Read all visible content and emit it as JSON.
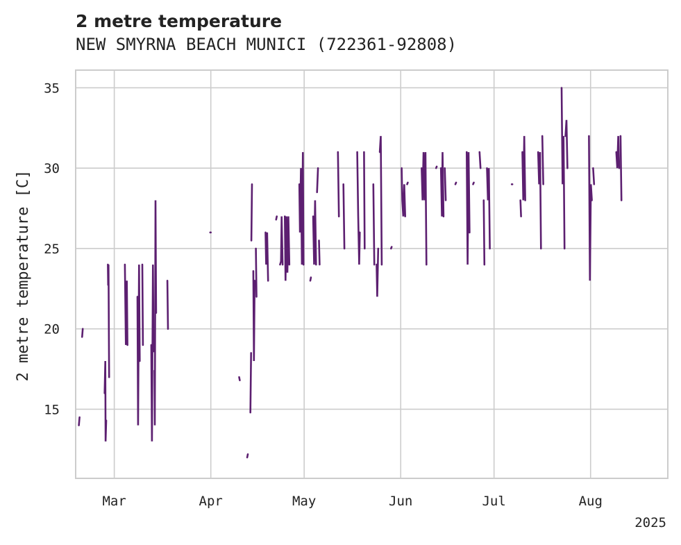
{
  "chart_data": {
    "type": "line",
    "title": "2 metre temperature",
    "subtitle": "NEW SMYRNA BEACH MUNICI (722361-92808)",
    "xlabel": "",
    "ylabel": "2 metre temperature [C]",
    "x_tick_labels": [
      "Mar",
      "Apr",
      "May",
      "Jun",
      "Jul",
      "Aug"
    ],
    "x_tick_days": [
      28,
      58,
      87,
      117,
      146,
      176
    ],
    "x_year_label": "2025",
    "xlim_days": [
      16,
      200
    ],
    "y_ticks": [
      15,
      20,
      25,
      30,
      35
    ],
    "ylim": [
      10.7,
      36.1
    ],
    "grid": true,
    "line_color": "#5c1f70",
    "series": [
      {
        "name": "2 metre temperature",
        "segments": [
          [
            [
              17,
              14.0
            ],
            [
              17.2,
              14.5
            ]
          ],
          [
            [
              18,
              19.5
            ],
            [
              18.2,
              20.0
            ]
          ],
          [
            [
              25,
              16.0
            ],
            [
              25.2,
              18.0
            ],
            [
              25.3,
              13.0
            ],
            [
              25.5,
              14.3
            ]
          ],
          [
            [
              26,
              24.0
            ],
            [
              26.1,
              22.7
            ],
            [
              26.2,
              24.0
            ],
            [
              26.4,
              17.0
            ]
          ],
          [
            [
              31.3,
              24.0
            ],
            [
              31.6,
              19.0
            ],
            [
              31.9,
              23.0
            ],
            [
              32.1,
              19.0
            ]
          ],
          [
            [
              35.2,
              22.0
            ],
            [
              35.4,
              14.0
            ],
            [
              35.7,
              24.0
            ],
            [
              35.9,
              18.0
            ]
          ],
          [
            [
              36.7,
              24.0
            ],
            [
              36.9,
              19.0
            ]
          ],
          [
            [
              39.5,
              19.0
            ],
            [
              39.7,
              13.0
            ],
            [
              40.0,
              24.0
            ],
            [
              40.2,
              18.6
            ]
          ],
          [
            [
              40.5,
              17.4
            ],
            [
              40.6,
              14.0
            ],
            [
              40.8,
              28.0
            ],
            [
              41.0,
              21.0
            ]
          ],
          [
            [
              44.5,
              23.0
            ],
            [
              44.7,
              20.0
            ]
          ],
          [
            [
              57.8,
              26.0
            ],
            [
              58.0,
              26.0
            ]
          ],
          [
            [
              66.8,
              17.0
            ],
            [
              67.0,
              16.8
            ]
          ],
          [
            [
              69.3,
              12.0
            ],
            [
              69.5,
              12.2
            ]
          ],
          [
            [
              70.3,
              14.8
            ],
            [
              70.5,
              18.5
            ]
          ],
          [
            [
              70.6,
              25.5
            ],
            [
              70.8,
              29.0
            ]
          ],
          [
            [
              71.2,
              23.6
            ],
            [
              71.4,
              18.0
            ],
            [
              71.6,
              23.0
            ]
          ],
          [
            [
              72.0,
              25.0
            ],
            [
              72.2,
              22.0
            ]
          ],
          [
            [
              75.0,
              26.0
            ],
            [
              75.2,
              24.0
            ],
            [
              75.5,
              26.0
            ],
            [
              75.8,
              23.0
            ]
          ],
          [
            [
              78.3,
              26.8
            ],
            [
              78.5,
              27.0
            ]
          ],
          [
            [
              79.5,
              24.0
            ],
            [
              79.8,
              24.2
            ],
            [
              80.0,
              27.0
            ],
            [
              80.3,
              24.0
            ]
          ],
          [
            [
              81.0,
              27.0
            ],
            [
              81.2,
              23.0
            ],
            [
              81.5,
              27.0
            ],
            [
              81.8,
              23.5
            ],
            [
              82.1,
              27.0
            ],
            [
              82.4,
              24.0
            ]
          ],
          [
            [
              85.5,
              29.0
            ],
            [
              85.7,
              26.0
            ],
            [
              86.0,
              30.0
            ],
            [
              86.3,
              24.0
            ],
            [
              86.6,
              31.0
            ],
            [
              86.8,
              24.0
            ]
          ],
          [
            [
              88.9,
              23.0
            ],
            [
              89.1,
              23.2
            ]
          ],
          [
            [
              89.8,
              27.0
            ],
            [
              90.1,
              24.0
            ],
            [
              90.4,
              28.0
            ],
            [
              90.7,
              24.0
            ]
          ],
          [
            [
              91.0,
              28.5
            ],
            [
              91.3,
              30.0
            ]
          ],
          [
            [
              91.6,
              25.5
            ],
            [
              91.8,
              24.0
            ]
          ],
          [
            [
              97.5,
              31.0
            ],
            [
              97.8,
              27.0
            ]
          ],
          [
            [
              99.2,
              29.0
            ],
            [
              99.5,
              25.0
            ]
          ],
          [
            [
              103.5,
              31.0
            ],
            [
              103.8,
              27.0
            ],
            [
              104.1,
              24.0
            ],
            [
              104.3,
              26.0
            ]
          ],
          [
            [
              105.6,
              31.0
            ],
            [
              105.8,
              25.0
            ]
          ],
          [
            [
              108.5,
              29.0
            ],
            [
              108.8,
              24.0
            ]
          ],
          [
            [
              109.5,
              24.0
            ],
            [
              109.7,
              22.0
            ],
            [
              110.0,
              25.0
            ]
          ],
          [
            [
              110.5,
              31.0
            ],
            [
              110.8,
              32.0
            ],
            [
              111.1,
              24.0
            ]
          ],
          [
            [
              114.0,
              25.0
            ],
            [
              114.2,
              25.1
            ]
          ],
          [
            [
              117.3,
              30.0
            ],
            [
              117.5,
              28.0
            ],
            [
              117.8,
              27.0
            ],
            [
              118.1,
              29.0
            ],
            [
              118.4,
              27.0
            ]
          ],
          [
            [
              119.0,
              29.0
            ],
            [
              119.2,
              29.1
            ]
          ],
          [
            [
              123.5,
              30.0
            ],
            [
              123.8,
              28.0
            ],
            [
              124.1,
              31.0
            ],
            [
              124.4,
              28.0
            ],
            [
              124.7,
              31.0
            ],
            [
              125.0,
              24.0
            ]
          ],
          [
            [
              128.0,
              30.0
            ],
            [
              128.2,
              30.1
            ]
          ],
          [
            [
              129.5,
              30.0
            ],
            [
              129.8,
              27.0
            ],
            [
              130.0,
              31.0
            ],
            [
              130.3,
              27.0
            ]
          ],
          [
            [
              130.7,
              30.0
            ],
            [
              131.0,
              28.0
            ]
          ],
          [
            [
              134.0,
              29.0
            ],
            [
              134.2,
              29.1
            ]
          ],
          [
            [
              137.5,
              31.0
            ],
            [
              137.8,
              24.0
            ],
            [
              138.1,
              31.0
            ],
            [
              138.4,
              26.0
            ]
          ],
          [
            [
              139.5,
              29.0
            ],
            [
              139.7,
              29.1
            ]
          ],
          [
            [
              141.5,
              31.0
            ],
            [
              141.8,
              30.0
            ]
          ],
          [
            [
              142.8,
              28.0
            ],
            [
              143.0,
              24.0
            ]
          ],
          [
            [
              143.8,
              30.0
            ],
            [
              144.1,
              28.0
            ],
            [
              144.4,
              30.0
            ],
            [
              144.7,
              25.0
            ]
          ],
          [
            [
              151.5,
              29.0
            ],
            [
              151.7,
              29.0
            ]
          ],
          [
            [
              154.2,
              28.0
            ],
            [
              154.4,
              27.0
            ]
          ],
          [
            [
              154.8,
              31.0
            ],
            [
              155.1,
              28.0
            ],
            [
              155.4,
              32.0
            ],
            [
              155.7,
              28.0
            ]
          ],
          [
            [
              159.7,
              31.0
            ],
            [
              160.0,
              29.0
            ],
            [
              160.3,
              31.0
            ],
            [
              160.6,
              25.0
            ]
          ],
          [
            [
              161.0,
              32.0
            ],
            [
              161.3,
              29.0
            ]
          ],
          [
            [
              167.0,
              35.0
            ],
            [
              167.3,
              29.0
            ],
            [
              167.6,
              32.0
            ],
            [
              167.9,
              25.0
            ]
          ],
          [
            [
              168.2,
              32.0
            ],
            [
              168.5,
              33.0
            ],
            [
              168.8,
              30.0
            ]
          ],
          [
            [
              175.5,
              32.0
            ],
            [
              175.8,
              23.0
            ],
            [
              176.1,
              29.0
            ],
            [
              176.4,
              28.0
            ]
          ],
          [
            [
              176.8,
              30.0
            ],
            [
              177.1,
              29.0
            ]
          ],
          [
            [
              184.0,
              31.0
            ],
            [
              184.3,
              30.0
            ],
            [
              184.6,
              32.0
            ],
            [
              184.9,
              30.0
            ]
          ],
          [
            [
              185.3,
              32.0
            ],
            [
              185.6,
              28.0
            ]
          ]
        ]
      }
    ]
  }
}
